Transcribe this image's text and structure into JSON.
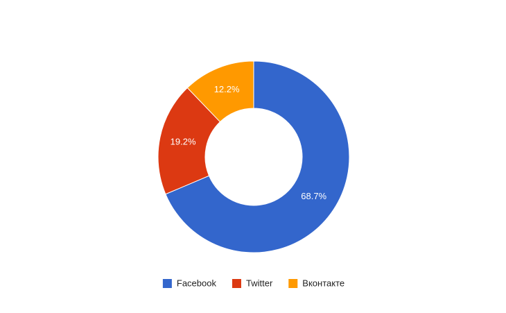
{
  "chart_data": {
    "type": "pie",
    "donut": true,
    "categories": [
      "Facebook",
      "Twitter",
      "Вконтакте"
    ],
    "values": [
      68.7,
      19.2,
      12.2
    ],
    "value_labels": [
      "68.7%",
      "19.2%",
      "12.2%"
    ],
    "colors": [
      "#3366cc",
      "#dc3912",
      "#ff9900"
    ],
    "legend": "bottom"
  }
}
